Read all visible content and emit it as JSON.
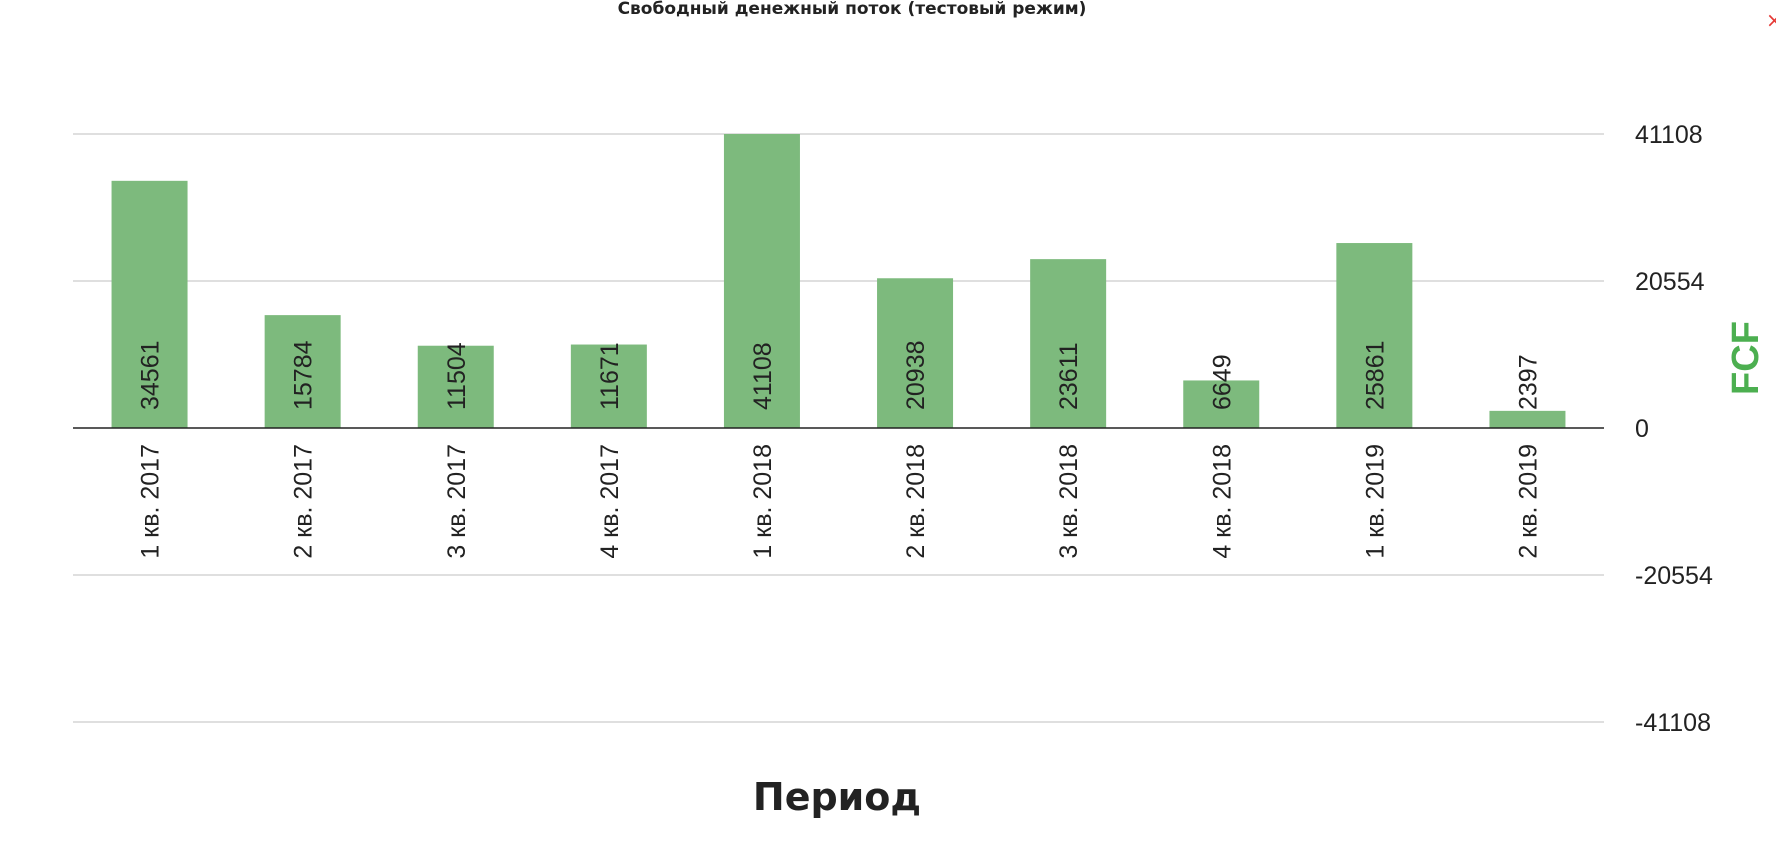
{
  "title": "Свободный денежный поток (тестовый режим)",
  "close_symbol": "×",
  "colors": {
    "bar": "#7dba7d",
    "axis_title_y": "#4caf50",
    "grid": "#cccccc",
    "zero_line": "#222222",
    "text": "#222222"
  },
  "chart_data": {
    "type": "bar",
    "title": "Свободный денежный поток (тестовый режим)",
    "categories": [
      "1 кв. 2017",
      "2 кв. 2017",
      "3 кв. 2017",
      "4 кв. 2017",
      "1 кв. 2018",
      "2 кв. 2018",
      "3 кв. 2018",
      "4 кв. 2018",
      "1 кв. 2019",
      "2 кв. 2019"
    ],
    "series": [
      {
        "values": [
          34561,
          15784,
          11504,
          11671,
          41108,
          20938,
          23611,
          6649,
          25861,
          2397
        ]
      }
    ],
    "xlabel": "Период",
    "ylabel": "FCF",
    "ylim": [
      -41108,
      41108
    ],
    "yticks": [
      41108,
      20554,
      0,
      -20554,
      -41108
    ],
    "ytick_labels": [
      "41108",
      "20554",
      "0",
      "-20554",
      "-41108"
    ],
    "y_axis_position": "right",
    "grid": true,
    "legend": "none",
    "data_labels": true
  }
}
